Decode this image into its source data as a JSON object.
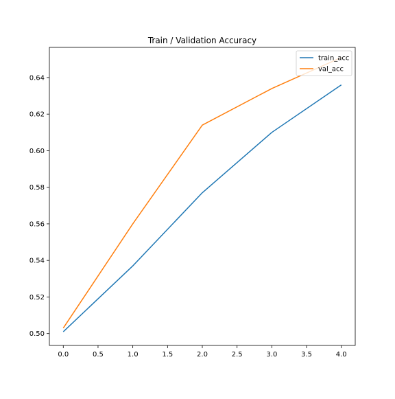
{
  "chart_data": {
    "type": "line",
    "title": "Train / Validation Accuracy",
    "xlabel": "",
    "ylabel": "",
    "x": [
      0,
      1,
      2,
      3,
      4
    ],
    "xlim": [
      -0.2,
      4.2
    ],
    "ylim": [
      0.4935,
      0.6565
    ],
    "xticks": [
      0.0,
      0.5,
      1.0,
      1.5,
      2.0,
      2.5,
      3.0,
      3.5,
      4.0
    ],
    "xtick_labels": [
      "0.0",
      "0.5",
      "1.0",
      "1.5",
      "2.0",
      "2.5",
      "3.0",
      "3.5",
      "4.0"
    ],
    "yticks": [
      0.5,
      0.52,
      0.54,
      0.56,
      0.58,
      0.6,
      0.62,
      0.64
    ],
    "ytick_labels": [
      "0.50",
      "0.52",
      "0.54",
      "0.56",
      "0.58",
      "0.60",
      "0.62",
      "0.64"
    ],
    "grid": false,
    "legend_position": "top-right",
    "series": [
      {
        "name": "train_acc",
        "color": "#1f77b4",
        "values": [
          0.501,
          0.537,
          0.577,
          0.61,
          0.636
        ]
      },
      {
        "name": "val_acc",
        "color": "#ff7f0e",
        "values": [
          0.503,
          0.56,
          0.614,
          0.634,
          0.651
        ]
      }
    ]
  }
}
